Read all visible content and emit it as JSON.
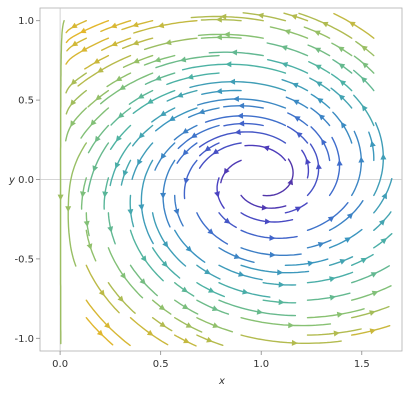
{
  "chart_data": {
    "type": "streamplot",
    "title": "",
    "xlabel": "x",
    "ylabel": "y",
    "xlim": [
      -0.1,
      1.7
    ],
    "ylim": [
      -1.08,
      1.08
    ],
    "x_ticks": [
      "0.0",
      "0.5",
      "1.0",
      "1.5"
    ],
    "x_tick_values": [
      0,
      0.5,
      1,
      1.5
    ],
    "y_ticks": [
      "-1.0",
      "-0.5",
      "0.0",
      "0.5",
      "1.0"
    ],
    "y_tick_values": [
      -1,
      -0.5,
      0,
      0.5,
      1
    ],
    "grid": false,
    "reference_lines": {
      "x": 0,
      "y": 0
    },
    "fixed_point": [
      1,
      0
    ],
    "rotation": "counter-clockwise spiral around (1, 0)",
    "color_scale": "magnitude: purple (slow) to blue to green to yellow (fast)",
    "legend": "none",
    "field": {
      "center_x": 1.0,
      "center_y": 0.0,
      "rotation_rate": 1.0,
      "radial_rate": 0.35,
      "edge_line_x": 0.0,
      "color_stops": [
        "#5a2a8f",
        "#4b3fc0",
        "#3f6ccc",
        "#3a95bf",
        "#4db3a3",
        "#86c174",
        "#c9b83c",
        "#e3b72c"
      ]
    }
  }
}
